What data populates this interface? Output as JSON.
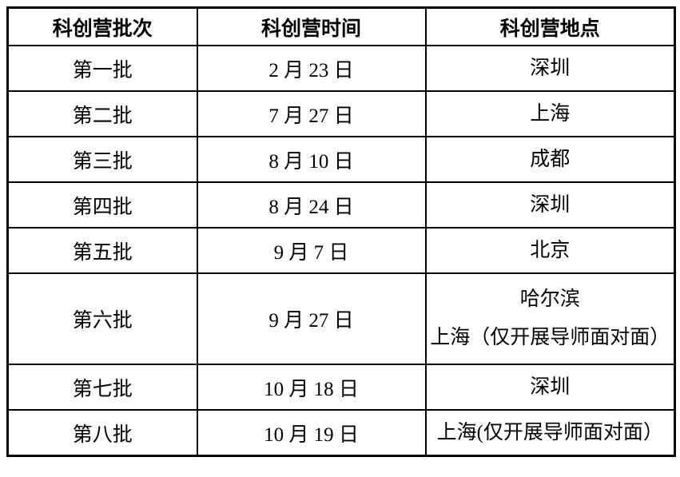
{
  "table": {
    "colors": {
      "border": "#000000",
      "text": "#000000",
      "background": "#ffffff"
    },
    "headers": [
      {
        "label": "科创营批次"
      },
      {
        "label": "科创营时间"
      },
      {
        "label": "科创营地点"
      }
    ],
    "rows": [
      {
        "batch": "第一批",
        "date": "2 月 23 日",
        "locations": [
          "深圳"
        ]
      },
      {
        "batch": "第二批",
        "date": "7 月 27 日",
        "locations": [
          "上海"
        ]
      },
      {
        "batch": "第三批",
        "date": "8 月 10 日",
        "locations": [
          "成都"
        ]
      },
      {
        "batch": "第四批",
        "date": "8 月 24 日",
        "locations": [
          "深圳"
        ]
      },
      {
        "batch": "第五批",
        "date": "9 月 7 日",
        "locations": [
          "北京"
        ]
      },
      {
        "batch": "第六批",
        "date": "9 月 27 日",
        "locations": [
          "哈尔滨",
          "上海（仅开展导师面对面）"
        ]
      },
      {
        "batch": "第七批",
        "date": "10 月 18 日",
        "locations": [
          "深圳"
        ]
      },
      {
        "batch": "第八批",
        "date": "10 月 19 日",
        "locations": [
          "上海(仅开展导师面对面）"
        ]
      }
    ]
  }
}
